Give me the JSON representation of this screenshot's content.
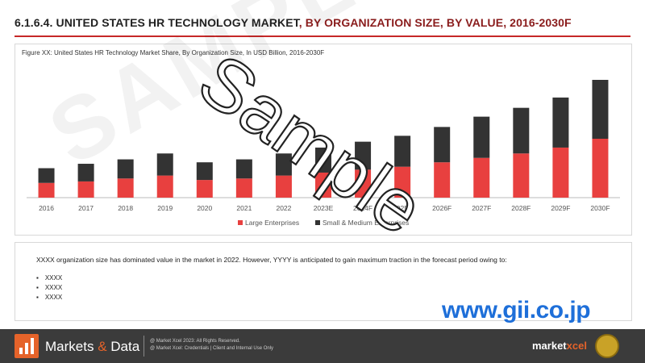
{
  "header": {
    "title_part1": "6.1.6.4. UNITED STATES HR TECHNOLOGY MARKET",
    "title_part2": ", BY ORGANIZATION SIZE, BY VALUE, 2016-2030F"
  },
  "figure_caption": "Figure XX: United States HR Technology Market Share, By Organization Size, In USD Billion, 2016-2030F",
  "chart_data": {
    "type": "bar",
    "stacked": true,
    "categories": [
      "2016",
      "2017",
      "2018",
      "2019",
      "2020",
      "2021",
      "2022",
      "2023E",
      "2024F",
      "2025F",
      "2026F",
      "2027F",
      "2028F",
      "2029F",
      "2030F"
    ],
    "series": [
      {
        "name": "Large Enterprises",
        "color": "#e8403f",
        "values": [
          1.0,
          1.1,
          1.3,
          1.5,
          1.2,
          1.3,
          1.5,
          1.7,
          1.9,
          2.1,
          2.4,
          2.7,
          3.0,
          3.4,
          4.0
        ]
      },
      {
        "name": "Small & Medium Enterprises",
        "color": "#333333",
        "values": [
          1.0,
          1.2,
          1.3,
          1.5,
          1.2,
          1.3,
          1.5,
          1.7,
          1.9,
          2.1,
          2.4,
          2.8,
          3.1,
          3.4,
          4.0
        ]
      }
    ],
    "legend_position": "bottom",
    "grid": false
  },
  "summary_text": "XXXX organization size has dominated value in the market in 2022. However, YYYY is anticipated to gain maximum traction in the forecast period owing to:",
  "bullets": [
    "XXXX",
    "XXXX",
    "XXXX"
  ],
  "watermark": "Sample",
  "watermark_bg": "SAMPLE",
  "gii_url": "www.gii.co.jp",
  "footer": {
    "brand_part1": "Markets",
    "brand_amp": " & ",
    "brand_part2": "Data",
    "copyright_line1": "@ Market Xcel 2023: All Rights Reserved.",
    "copyright_line2": "@ Market Xcel: Credentials | Client and Internal Use Only",
    "mx_part1": "market",
    "mx_part2": "xcel"
  }
}
